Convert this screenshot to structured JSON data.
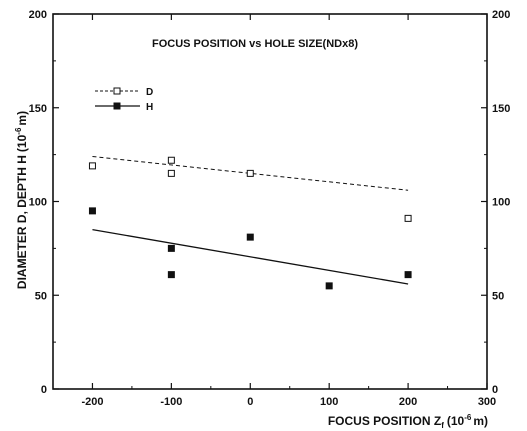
{
  "chart_data": {
    "type": "scatter",
    "title": "FOCUS POSITION vs HOLE SIZE(NDx8)",
    "xlabel": "FOCUS POSITION Z",
    "xlabel_sub": "f",
    "xlabel_unit_open": "(10",
    "xlabel_unit_exp": "-6",
    "xlabel_unit_close": "m)",
    "ylabel": "DIAMETER  D, DEPTH  H",
    "ylabel_unit_open": "(10",
    "ylabel_unit_exp": "-6",
    "ylabel_unit_close": "m)",
    "xlim": [
      -250,
      300
    ],
    "ylim": [
      0,
      200
    ],
    "xticks": [
      "-200",
      "-100",
      "0",
      "100",
      "200",
      "300"
    ],
    "yticks_left": [
      "0",
      "50",
      "100",
      "150",
      "200"
    ],
    "yticks_right": [
      "0",
      "50",
      "100",
      "150",
      "200"
    ],
    "legend_position": "top-left",
    "series": [
      {
        "name": "D",
        "marker": "open-square",
        "line": "dashed",
        "points": [
          [
            -200,
            119
          ],
          [
            -100,
            122
          ],
          [
            -100,
            115
          ],
          [
            0,
            115
          ],
          [
            200,
            91
          ]
        ],
        "fit_line": [
          [
            -200,
            124
          ],
          [
            200,
            106
          ]
        ]
      },
      {
        "name": "H",
        "marker": "filled-square",
        "line": "solid",
        "points": [
          [
            -200,
            95
          ],
          [
            -100,
            75
          ],
          [
            -100,
            61
          ],
          [
            0,
            81
          ],
          [
            100,
            55
          ],
          [
            200,
            61
          ]
        ],
        "fit_line": [
          [
            -200,
            85
          ],
          [
            200,
            56
          ]
        ]
      }
    ]
  }
}
